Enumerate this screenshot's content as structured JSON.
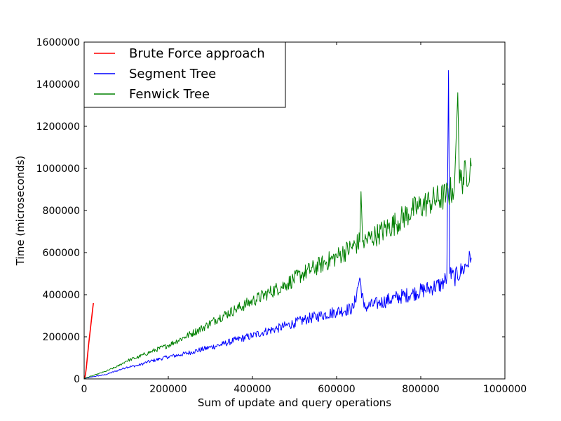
{
  "chart_data": {
    "type": "line",
    "title": "",
    "xlabel": "Sum of update and query operations",
    "ylabel": "Time (microseconds)",
    "xlim": [
      0,
      1000000
    ],
    "ylim": [
      0,
      1600000
    ],
    "x_ticks": [
      0,
      200000,
      400000,
      600000,
      800000,
      1000000
    ],
    "x_tick_labels": [
      "0",
      "200000",
      "400000",
      "600000",
      "800000",
      "1000000"
    ],
    "y_ticks": [
      0,
      200000,
      400000,
      600000,
      800000,
      1000000,
      1200000,
      1400000,
      1600000
    ],
    "y_tick_labels": [
      "0",
      "200000",
      "400000",
      "600000",
      "800000",
      "1000000",
      "1200000",
      "1400000",
      "1600000"
    ],
    "grid": false,
    "legend_position": "top-left",
    "series": [
      {
        "name": "Brute Force approach",
        "color": "#ff0000",
        "points": [
          [
            1000,
            2000
          ],
          [
            3000,
            20000
          ],
          [
            5000,
            50000
          ],
          [
            7000,
            90000
          ],
          [
            9000,
            130000
          ],
          [
            11000,
            170000
          ],
          [
            13000,
            205000
          ],
          [
            15000,
            240000
          ],
          [
            17000,
            275000
          ],
          [
            19000,
            310000
          ],
          [
            21000,
            345000
          ],
          [
            22000,
            360000
          ]
        ]
      },
      {
        "name": "Segment Tree",
        "color": "#0000ff",
        "points": [
          [
            0,
            1000
          ],
          [
            20000,
            10000
          ],
          [
            50000,
            20000
          ],
          [
            80000,
            40000
          ],
          [
            100000,
            55000
          ],
          [
            130000,
            65000
          ],
          [
            150000,
            80000
          ],
          [
            180000,
            95000
          ],
          [
            200000,
            105000
          ],
          [
            230000,
            115000
          ],
          [
            260000,
            130000
          ],
          [
            300000,
            150000
          ],
          [
            330000,
            165000
          ],
          [
            360000,
            185000
          ],
          [
            400000,
            205000
          ],
          [
            430000,
            225000
          ],
          [
            460000,
            240000
          ],
          [
            500000,
            265000
          ],
          [
            530000,
            285000
          ],
          [
            560000,
            300000
          ],
          [
            600000,
            320000
          ],
          [
            640000,
            335000
          ],
          [
            655000,
            480000
          ],
          [
            665000,
            340000
          ],
          [
            700000,
            360000
          ],
          [
            740000,
            385000
          ],
          [
            780000,
            405000
          ],
          [
            820000,
            430000
          ],
          [
            850000,
            450000
          ],
          [
            862000,
            480000
          ],
          [
            866000,
            1465000
          ],
          [
            869000,
            500000
          ],
          [
            880000,
            480000
          ],
          [
            900000,
            520000
          ],
          [
            920000,
            575000
          ]
        ]
      },
      {
        "name": "Fenwick Tree",
        "color": "#008000",
        "points": [
          [
            0,
            2000
          ],
          [
            20000,
            15000
          ],
          [
            50000,
            35000
          ],
          [
            80000,
            60000
          ],
          [
            100000,
            85000
          ],
          [
            130000,
            105000
          ],
          [
            160000,
            130000
          ],
          [
            200000,
            160000
          ],
          [
            240000,
            200000
          ],
          [
            280000,
            240000
          ],
          [
            320000,
            290000
          ],
          [
            360000,
            330000
          ],
          [
            400000,
            370000
          ],
          [
            440000,
            410000
          ],
          [
            480000,
            450000
          ],
          [
            520000,
            500000
          ],
          [
            560000,
            540000
          ],
          [
            600000,
            580000
          ],
          [
            640000,
            630000
          ],
          [
            655000,
            650000
          ],
          [
            658000,
            890000
          ],
          [
            662000,
            650000
          ],
          [
            700000,
            690000
          ],
          [
            740000,
            740000
          ],
          [
            780000,
            800000
          ],
          [
            820000,
            840000
          ],
          [
            860000,
            870000
          ],
          [
            880000,
            910000
          ],
          [
            888000,
            1360000
          ],
          [
            892000,
            930000
          ],
          [
            920000,
            1010000
          ]
        ]
      }
    ]
  }
}
